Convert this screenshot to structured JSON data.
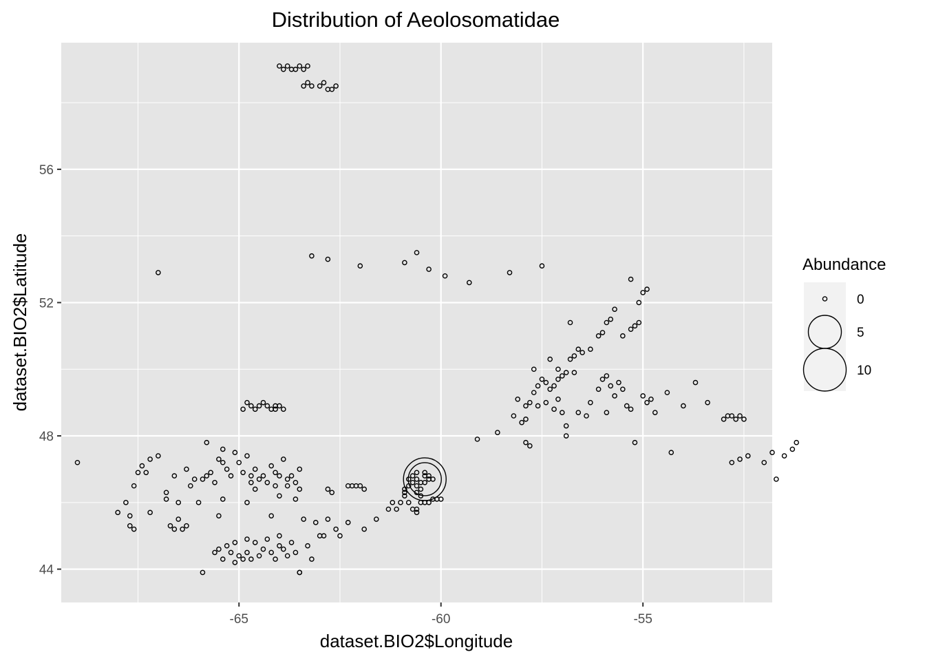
{
  "chart_data": {
    "type": "scatter",
    "title": "Distribution of Aeolosomatidae",
    "xlabel": "dataset.BIO2$Longitude",
    "ylabel": "dataset.BIO2$Latitude",
    "xlim": [
      -69.4,
      -51.8
    ],
    "ylim": [
      43.0,
      59.8
    ],
    "x_ticks": [
      -65,
      -60,
      -55
    ],
    "x_tick_labels": [
      "-65",
      "-60",
      "-55"
    ],
    "x_minor_ticks": [
      -67.5,
      -62.5,
      -57.5,
      -52.5
    ],
    "y_ticks": [
      44,
      48,
      52,
      56
    ],
    "y_tick_labels": [
      "44",
      "48",
      "52",
      "56"
    ],
    "y_minor_ticks": [
      46,
      50,
      54,
      58
    ],
    "grid": true,
    "legend": {
      "title": "Abundance",
      "position": "right",
      "entries": [
        {
          "label": "0",
          "value": 0
        },
        {
          "label": "5",
          "value": 5
        },
        {
          "label": "10",
          "value": 10
        }
      ]
    },
    "colors": {
      "panel_background": "#e5e5e5",
      "grid": "#ffffff",
      "point_stroke": "#000000",
      "legend_key_background": "#f2f2f2"
    },
    "points": [
      [
        -69.0,
        47.2,
        0
      ],
      [
        -68.0,
        45.7,
        0
      ],
      [
        -67.8,
        46.0,
        0
      ],
      [
        -67.7,
        45.6,
        0
      ],
      [
        -67.7,
        45.3,
        0
      ],
      [
        -67.6,
        45.2,
        0
      ],
      [
        -67.6,
        46.5,
        0
      ],
      [
        -67.5,
        46.9,
        0
      ],
      [
        -67.4,
        47.1,
        0
      ],
      [
        -67.3,
        46.9,
        0
      ],
      [
        -67.2,
        45.7,
        0
      ],
      [
        -67.2,
        47.3,
        0
      ],
      [
        -67.0,
        47.4,
        0
      ],
      [
        -67.0,
        52.9,
        0
      ],
      [
        -66.8,
        46.3,
        0
      ],
      [
        -66.8,
        46.1,
        0
      ],
      [
        -66.7,
        45.3,
        0
      ],
      [
        -66.6,
        45.2,
        0
      ],
      [
        -66.6,
        46.8,
        0
      ],
      [
        -66.5,
        45.5,
        0
      ],
      [
        -66.5,
        46.0,
        0
      ],
      [
        -66.4,
        45.2,
        0
      ],
      [
        -66.3,
        47.0,
        0
      ],
      [
        -66.3,
        45.3,
        0
      ],
      [
        -66.2,
        46.5,
        0
      ],
      [
        -66.1,
        46.7,
        0
      ],
      [
        -66.0,
        46.0,
        0
      ],
      [
        -65.9,
        46.7,
        0
      ],
      [
        -65.8,
        47.8,
        0
      ],
      [
        -65.8,
        46.8,
        0
      ],
      [
        -65.7,
        46.9,
        0
      ],
      [
        -65.6,
        46.6,
        0
      ],
      [
        -65.5,
        45.6,
        0
      ],
      [
        -65.5,
        47.3,
        0
      ],
      [
        -65.4,
        47.2,
        0
      ],
      [
        -65.4,
        47.6,
        0
      ],
      [
        -65.3,
        47.0,
        0
      ],
      [
        -65.2,
        46.8,
        0
      ],
      [
        -65.1,
        47.5,
        0
      ],
      [
        -65.0,
        47.2,
        0
      ],
      [
        -64.9,
        46.9,
        0
      ],
      [
        -64.8,
        47.4,
        0
      ],
      [
        -64.7,
        46.8,
        0
      ],
      [
        -64.7,
        46.6,
        0
      ],
      [
        -64.6,
        46.4,
        0
      ],
      [
        -64.6,
        47.0,
        0
      ],
      [
        -64.5,
        46.7,
        0
      ],
      [
        -64.4,
        46.8,
        0
      ],
      [
        -64.3,
        46.6,
        0
      ],
      [
        -64.2,
        47.1,
        0
      ],
      [
        -64.1,
        46.9,
        0
      ],
      [
        -64.1,
        46.5,
        0
      ],
      [
        -64.0,
        46.2,
        0
      ],
      [
        -64.0,
        46.8,
        0
      ],
      [
        -63.9,
        47.3,
        0
      ],
      [
        -63.8,
        46.5,
        0
      ],
      [
        -63.8,
        46.7,
        0
      ],
      [
        -63.7,
        46.8,
        0
      ],
      [
        -63.6,
        46.6,
        0
      ],
      [
        -63.5,
        47.0,
        0
      ],
      [
        -63.5,
        46.4,
        0
      ],
      [
        -65.9,
        43.9,
        0
      ],
      [
        -65.6,
        44.5,
        0
      ],
      [
        -65.5,
        44.6,
        0
      ],
      [
        -65.4,
        44.3,
        0
      ],
      [
        -65.3,
        44.7,
        0
      ],
      [
        -65.2,
        44.5,
        0
      ],
      [
        -65.1,
        44.2,
        0
      ],
      [
        -65.1,
        44.8,
        0
      ],
      [
        -65.0,
        44.4,
        0
      ],
      [
        -64.9,
        44.3,
        0
      ],
      [
        -64.8,
        44.9,
        0
      ],
      [
        -64.8,
        44.5,
        0
      ],
      [
        -64.7,
        44.3,
        0
      ],
      [
        -64.6,
        44.8,
        0
      ],
      [
        -64.5,
        44.4,
        0
      ],
      [
        -64.4,
        44.6,
        0
      ],
      [
        -64.3,
        44.9,
        0
      ],
      [
        -64.2,
        44.5,
        0
      ],
      [
        -64.1,
        44.3,
        0
      ],
      [
        -64.0,
        44.7,
        0
      ],
      [
        -63.9,
        44.6,
        0
      ],
      [
        -63.8,
        44.4,
        0
      ],
      [
        -63.7,
        44.8,
        0
      ],
      [
        -63.6,
        44.5,
        0
      ],
      [
        -63.5,
        43.9,
        0
      ],
      [
        -63.5,
        43.9,
        0
      ],
      [
        -63.3,
        44.7,
        0
      ],
      [
        -63.2,
        44.3,
        0
      ],
      [
        -63.0,
        45.0,
        0
      ],
      [
        -62.9,
        45.0,
        0
      ],
      [
        -65.4,
        46.1,
        0
      ],
      [
        -64.8,
        46.0,
        0
      ],
      [
        -64.2,
        45.6,
        0
      ],
      [
        -64.0,
        45.0,
        0
      ],
      [
        -63.6,
        46.1,
        0
      ],
      [
        -63.4,
        45.5,
        0
      ],
      [
        -63.1,
        45.4,
        0
      ],
      [
        -62.8,
        45.5,
        0
      ],
      [
        -62.6,
        45.2,
        0
      ],
      [
        -62.5,
        45.0,
        0
      ],
      [
        -62.3,
        45.4,
        0
      ],
      [
        -61.9,
        45.2,
        0
      ],
      [
        -61.6,
        45.5,
        0
      ],
      [
        -61.3,
        45.8,
        0
      ],
      [
        -61.2,
        46.0,
        0
      ],
      [
        -61.1,
        45.8,
        0
      ],
      [
        -61.0,
        46.0,
        0
      ],
      [
        -60.9,
        46.4,
        0
      ],
      [
        -62.8,
        46.4,
        0
      ],
      [
        -62.7,
        46.3,
        0
      ],
      [
        -62.3,
        46.5,
        0
      ],
      [
        -62.2,
        46.5,
        0
      ],
      [
        -62.1,
        46.5,
        0
      ],
      [
        -62.0,
        46.5,
        0
      ],
      [
        -61.9,
        46.4,
        0
      ],
      [
        -60.8,
        46.7,
        0
      ],
      [
        -60.7,
        46.8,
        0
      ],
      [
        -60.6,
        46.7,
        0
      ],
      [
        -60.6,
        46.5,
        0
      ],
      [
        -60.5,
        46.6,
        0
      ],
      [
        -60.5,
        46.4,
        0
      ],
      [
        -60.4,
        46.8,
        0
      ],
      [
        -60.4,
        46.9,
        0
      ],
      [
        -60.3,
        46.7,
        0
      ],
      [
        -60.3,
        46.8,
        0
      ],
      [
        -60.2,
        46.7,
        0
      ],
      [
        -60.4,
        46.6,
        0
      ],
      [
        -60.6,
        46.9,
        0
      ],
      [
        -60.7,
        46.6,
        0
      ],
      [
        -60.8,
        46.5,
        0
      ],
      [
        -60.9,
        46.2,
        0
      ],
      [
        -60.9,
        46.3,
        0
      ],
      [
        -60.8,
        46.0,
        0
      ],
      [
        -60.7,
        45.8,
        0
      ],
      [
        -60.6,
        45.7,
        0
      ],
      [
        -60.6,
        45.8,
        0
      ],
      [
        -60.5,
        46.0,
        0
      ],
      [
        -60.4,
        46.0,
        0
      ],
      [
        -60.3,
        46.0,
        0
      ],
      [
        -60.2,
        46.1,
        0
      ],
      [
        -60.1,
        46.1,
        0
      ],
      [
        -60.0,
        46.1,
        0
      ],
      [
        -60.5,
        46.2,
        0
      ],
      [
        -60.6,
        46.3,
        0
      ],
      [
        -60.4,
        46.7,
        5
      ],
      [
        -60.4,
        46.7,
        10
      ],
      [
        -64.9,
        48.8,
        0
      ],
      [
        -64.8,
        49.0,
        0
      ],
      [
        -64.7,
        48.9,
        0
      ],
      [
        -64.6,
        48.8,
        0
      ],
      [
        -64.5,
        48.9,
        0
      ],
      [
        -64.4,
        49.0,
        0
      ],
      [
        -64.3,
        48.9,
        0
      ],
      [
        -64.2,
        48.8,
        0
      ],
      [
        -64.1,
        48.9,
        0
      ],
      [
        -64.1,
        48.8,
        0
      ],
      [
        -64.0,
        48.9,
        0
      ],
      [
        -63.9,
        48.8,
        0
      ],
      [
        -64.0,
        59.1,
        0
      ],
      [
        -63.9,
        59.0,
        0
      ],
      [
        -63.8,
        59.1,
        0
      ],
      [
        -63.7,
        59.0,
        0
      ],
      [
        -63.6,
        59.0,
        0
      ],
      [
        -63.5,
        59.1,
        0
      ],
      [
        -63.4,
        59.0,
        0
      ],
      [
        -63.3,
        59.1,
        0
      ],
      [
        -63.4,
        58.5,
        0
      ],
      [
        -63.3,
        58.6,
        0
      ],
      [
        -63.2,
        58.5,
        0
      ],
      [
        -63.0,
        58.5,
        0
      ],
      [
        -62.9,
        58.6,
        0
      ],
      [
        -62.8,
        58.4,
        0
      ],
      [
        -62.7,
        58.4,
        0
      ],
      [
        -62.6,
        58.5,
        0
      ],
      [
        -63.2,
        53.4,
        0
      ],
      [
        -62.8,
        53.3,
        0
      ],
      [
        -62.0,
        53.1,
        0
      ],
      [
        -60.9,
        53.2,
        0
      ],
      [
        -60.6,
        53.5,
        0
      ],
      [
        -60.3,
        53.0,
        0
      ],
      [
        -59.9,
        52.8,
        0
      ],
      [
        -59.3,
        52.6,
        0
      ],
      [
        -58.3,
        52.9,
        0
      ],
      [
        -57.5,
        53.1,
        0
      ],
      [
        -59.1,
        47.9,
        0
      ],
      [
        -58.6,
        48.1,
        0
      ],
      [
        -58.2,
        48.6,
        0
      ],
      [
        -58.0,
        48.4,
        0
      ],
      [
        -57.9,
        48.5,
        0
      ],
      [
        -57.9,
        48.9,
        0
      ],
      [
        -57.8,
        49.0,
        0
      ],
      [
        -57.7,
        49.3,
        0
      ],
      [
        -57.6,
        49.5,
        0
      ],
      [
        -57.5,
        49.7,
        0
      ],
      [
        -57.4,
        49.6,
        0
      ],
      [
        -57.3,
        49.4,
        0
      ],
      [
        -57.2,
        49.5,
        0
      ],
      [
        -57.1,
        49.7,
        0
      ],
      [
        -57.0,
        49.8,
        0
      ],
      [
        -56.9,
        49.9,
        0
      ],
      [
        -56.8,
        50.3,
        0
      ],
      [
        -56.7,
        50.4,
        0
      ],
      [
        -56.6,
        50.6,
        0
      ],
      [
        -56.5,
        50.5,
        0
      ],
      [
        -56.3,
        50.6,
        0
      ],
      [
        -56.1,
        51.0,
        0
      ],
      [
        -56.0,
        51.1,
        0
      ],
      [
        -55.9,
        51.4,
        0
      ],
      [
        -55.8,
        51.5,
        0
      ],
      [
        -55.7,
        51.8,
        0
      ],
      [
        -55.5,
        51.0,
        0
      ],
      [
        -55.3,
        51.2,
        0
      ],
      [
        -55.2,
        51.3,
        0
      ],
      [
        -55.1,
        51.4,
        0
      ],
      [
        -55.1,
        52.0,
        0
      ],
      [
        -55.0,
        52.3,
        0
      ],
      [
        -54.9,
        52.4,
        0
      ],
      [
        -55.3,
        52.7,
        0
      ],
      [
        -56.8,
        51.4,
        0
      ],
      [
        -57.2,
        48.8,
        0
      ],
      [
        -57.1,
        49.1,
        0
      ],
      [
        -57.4,
        49.0,
        0
      ],
      [
        -57.6,
        48.9,
        0
      ],
      [
        -57.0,
        48.7,
        0
      ],
      [
        -56.9,
        48.3,
        0
      ],
      [
        -56.6,
        48.7,
        0
      ],
      [
        -56.4,
        48.6,
        0
      ],
      [
        -56.3,
        49.0,
        0
      ],
      [
        -56.1,
        49.4,
        0
      ],
      [
        -56.0,
        49.7,
        0
      ],
      [
        -55.9,
        49.8,
        0
      ],
      [
        -55.8,
        49.5,
        0
      ],
      [
        -55.6,
        49.6,
        0
      ],
      [
        -55.5,
        49.4,
        0
      ],
      [
        -55.4,
        48.9,
        0
      ],
      [
        -55.3,
        48.8,
        0
      ],
      [
        -55.2,
        47.8,
        0
      ],
      [
        -55.0,
        49.2,
        0
      ],
      [
        -54.9,
        49.0,
        0
      ],
      [
        -54.8,
        49.1,
        0
      ],
      [
        -54.7,
        48.7,
        0
      ],
      [
        -54.4,
        49.3,
        0
      ],
      [
        -54.0,
        48.9,
        0
      ],
      [
        -53.7,
        49.6,
        0
      ],
      [
        -53.4,
        49.0,
        0
      ],
      [
        -53.0,
        48.5,
        0
      ],
      [
        -52.9,
        48.6,
        0
      ],
      [
        -52.8,
        48.6,
        0
      ],
      [
        -52.7,
        48.5,
        0
      ],
      [
        -52.6,
        48.6,
        0
      ],
      [
        -52.5,
        48.5,
        0
      ],
      [
        -52.8,
        47.2,
        0
      ],
      [
        -52.6,
        47.3,
        0
      ],
      [
        -52.4,
        47.4,
        0
      ],
      [
        -52.0,
        47.2,
        0
      ],
      [
        -51.8,
        47.5,
        0
      ],
      [
        -51.7,
        46.7,
        0
      ],
      [
        -51.5,
        47.4,
        0
      ],
      [
        -51.3,
        47.6,
        0
      ],
      [
        -51.2,
        47.8,
        0
      ],
      [
        -54.3,
        47.5,
        0
      ],
      [
        -56.7,
        49.9,
        0
      ],
      [
        -57.9,
        47.8,
        0
      ],
      [
        -57.8,
        47.7,
        0
      ],
      [
        -58.1,
        49.1,
        0
      ],
      [
        -57.7,
        50.0,
        0
      ],
      [
        -57.3,
        50.3,
        0
      ],
      [
        -57.1,
        50.0,
        0
      ],
      [
        -56.9,
        48.0,
        0
      ],
      [
        -55.9,
        48.7,
        0
      ],
      [
        -55.7,
        49.2,
        0
      ]
    ]
  }
}
